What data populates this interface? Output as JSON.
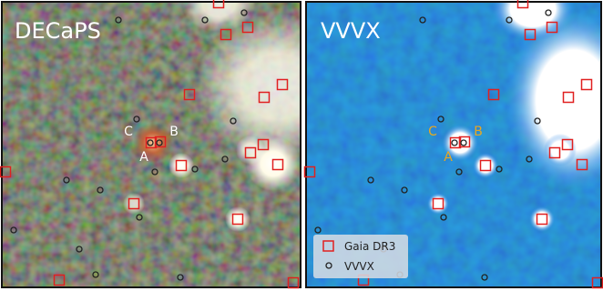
{
  "panels": [
    {
      "title": "DECaPS",
      "labels": [
        "A",
        "B",
        "C"
      ]
    },
    {
      "title": "VVVX",
      "labels": [
        "A",
        "B",
        "C"
      ]
    }
  ],
  "legend": {
    "entries": [
      "Gaia DR3",
      "VVVX"
    ]
  }
}
